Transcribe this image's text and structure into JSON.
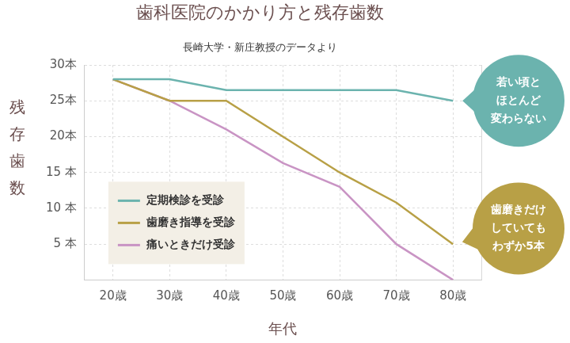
{
  "chart_data": {
    "type": "line",
    "title": "歯科医院のかかり方と残存歯数",
    "subtitle": "長崎大学・新庄教授のデータより",
    "x_label": "年代",
    "y_label": "残存歯数",
    "categories": [
      "20歳",
      "30歳",
      "40歳",
      "50歳",
      "60歳",
      "70歳",
      "80歳"
    ],
    "series": [
      {
        "name": "定期検診を受診",
        "color": "#6bb3ae",
        "values": [
          28,
          28,
          26.5,
          26.5,
          26.5,
          26.5,
          25
        ],
        "annotation": [
          "若い頃と",
          "ほとんど",
          "変わらない"
        ]
      },
      {
        "name": "歯磨き指導を受診",
        "color": "#b8a046",
        "values": [
          28,
          25,
          25,
          20,
          15,
          10.8,
          5
        ],
        "annotation": [
          "歯磨きだけ",
          "していても",
          "わずか5本"
        ]
      },
      {
        "name": "痛いときだけ受診",
        "color": "#c994c4",
        "values": [
          28,
          25,
          21,
          16.3,
          13,
          5,
          0
        ]
      }
    ],
    "ylim": [
      0,
      30
    ],
    "yticks": [
      {
        "value": 5,
        "label": "5 本"
      },
      {
        "value": 10,
        "label": "10 本"
      },
      {
        "value": 15,
        "label": "15 本"
      },
      {
        "value": 20,
        "label": "20本"
      },
      {
        "value": 25,
        "label": "25本"
      },
      {
        "value": 30,
        "label": "30本"
      }
    ],
    "grid": true,
    "legend": "lower left"
  }
}
